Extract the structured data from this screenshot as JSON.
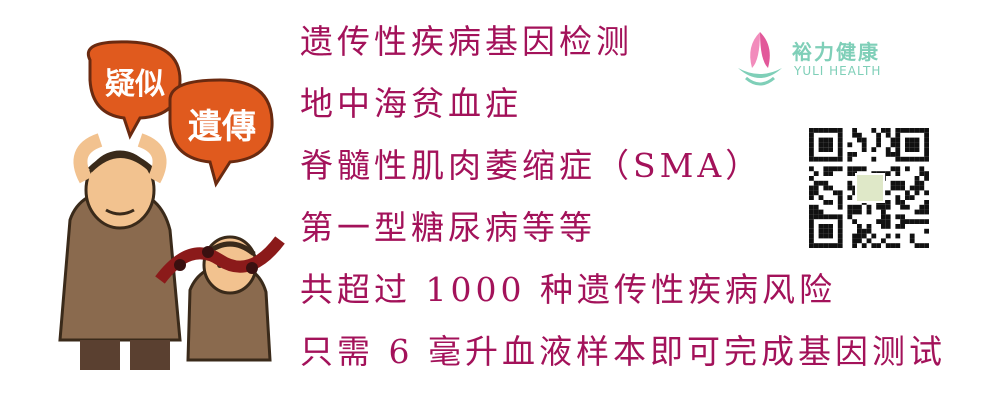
{
  "illustration": {
    "bubble_left": "疑似",
    "bubble_right": "遺傳"
  },
  "lines": [
    "遗传性疾病基因检测",
    "地中海贫血症",
    "脊髓性肌肉萎缩症（SMA）",
    "第一型糖尿病等等",
    "共超过 1000 种遗传性疾病风险",
    "只需 6 毫升血液样本即可完成基因测试"
  ],
  "logo": {
    "name_cn": "裕力健康",
    "name_en": "YULI HEALTH"
  },
  "colors": {
    "text": "#a3125a",
    "logo": "#7fcfb8",
    "bubble": "#e05a1e"
  }
}
